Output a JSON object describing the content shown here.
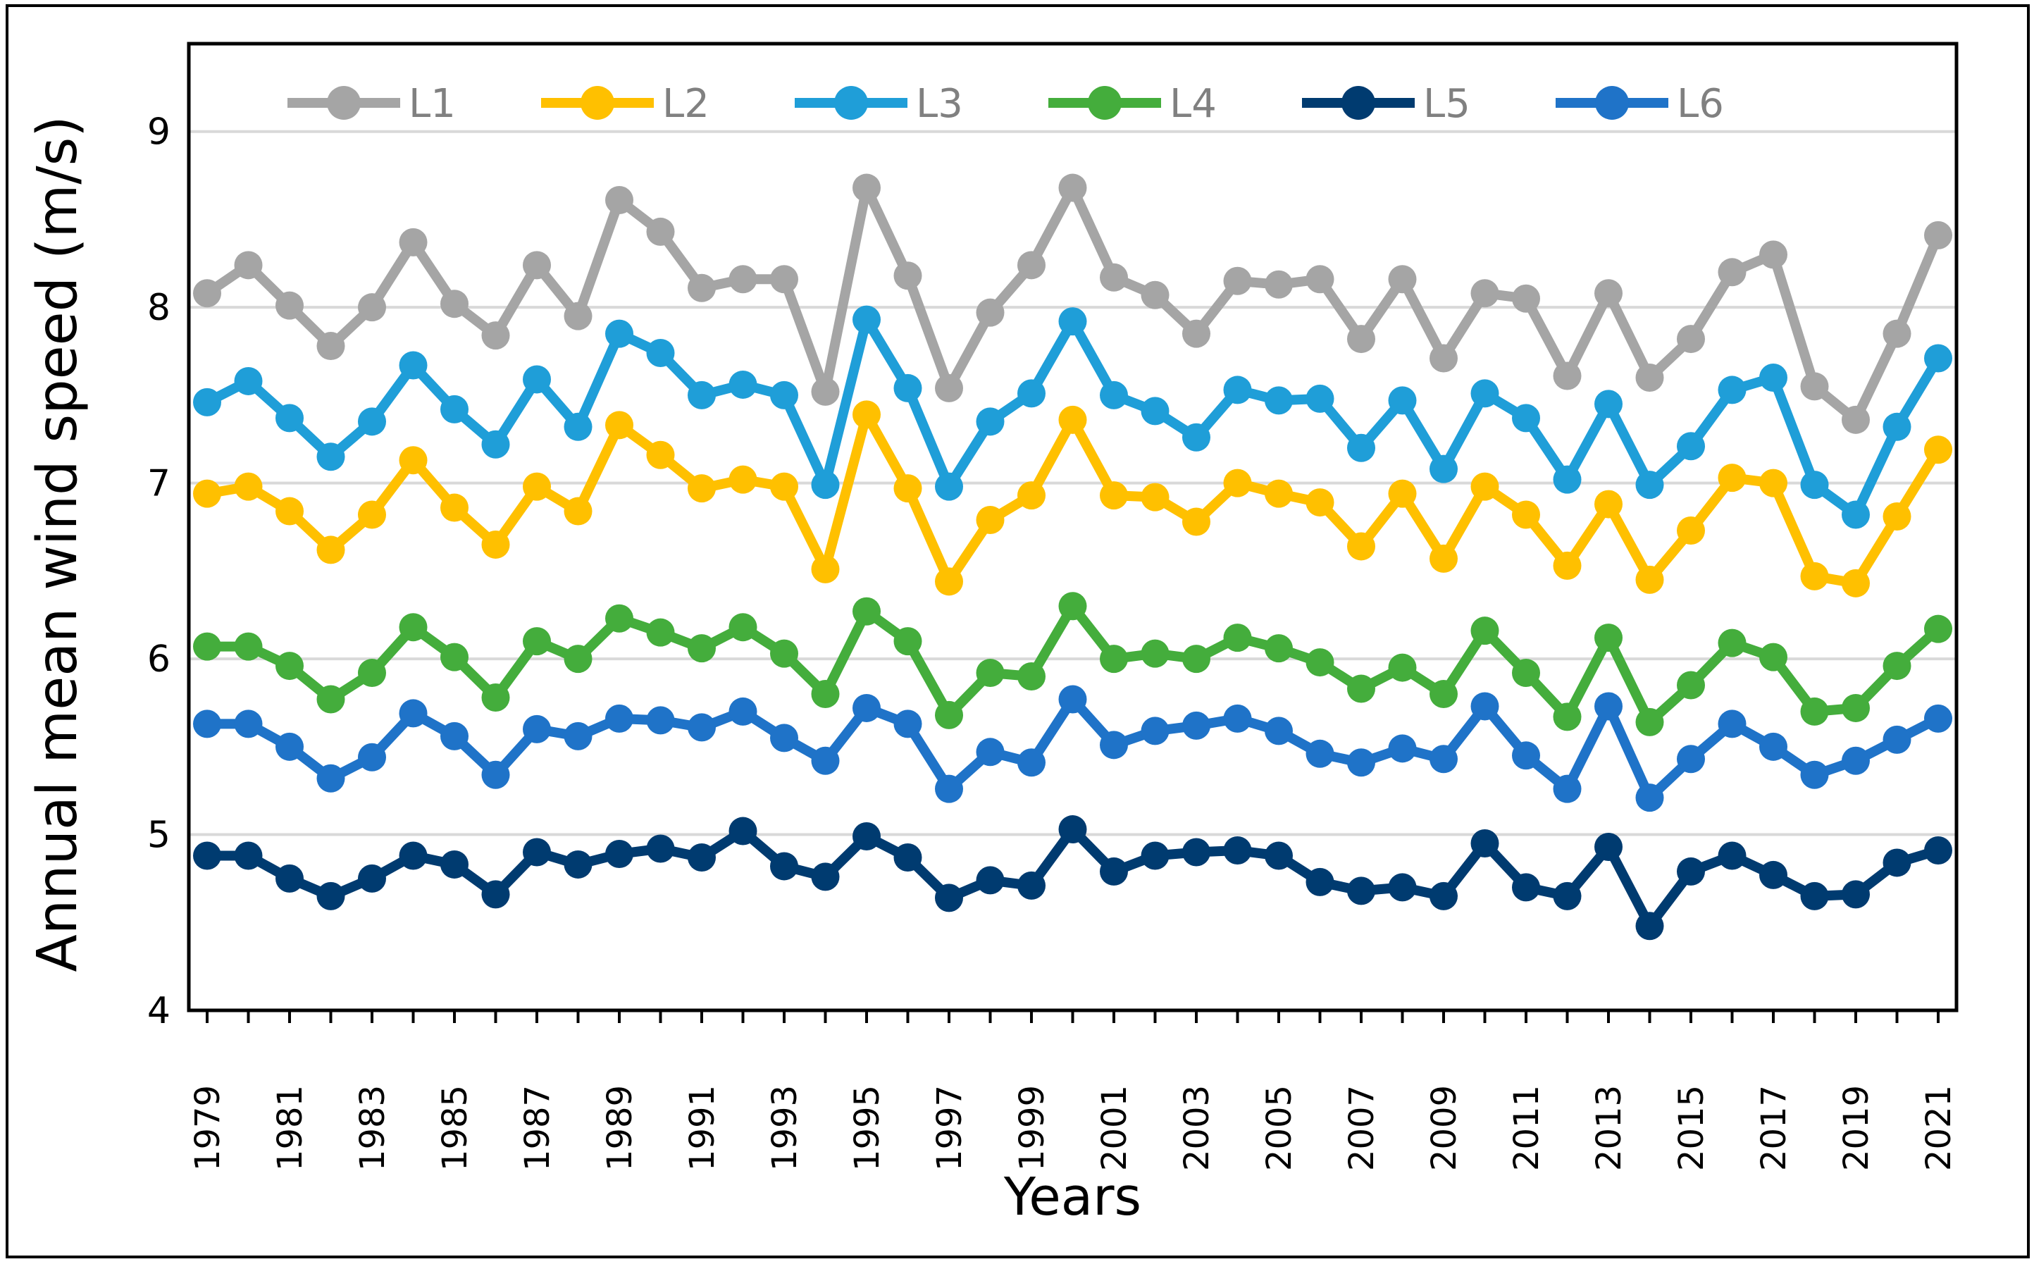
{
  "chart_data": {
    "type": "line",
    "title": "",
    "xlabel": "Years",
    "ylabel": "Annual mean wind speed (m/s)",
    "ylim": [
      4,
      9.5
    ],
    "yticks": [
      4,
      5,
      6,
      7,
      8,
      9
    ],
    "grid": "horizontal",
    "legend_placement": "top-center",
    "x": [
      1979,
      1980,
      1981,
      1982,
      1983,
      1984,
      1985,
      1986,
      1987,
      1988,
      1989,
      1990,
      1991,
      1992,
      1993,
      1994,
      1995,
      1996,
      1997,
      1998,
      1999,
      2000,
      2001,
      2002,
      2003,
      2004,
      2005,
      2006,
      2007,
      2008,
      2009,
      2010,
      2011,
      2012,
      2013,
      2014,
      2015,
      2016,
      2017,
      2018,
      2019,
      2020,
      2021
    ],
    "xtick_labels": [
      "1979",
      "1981",
      "1983",
      "1985",
      "1987",
      "1989",
      "1991",
      "1993",
      "1995",
      "1997",
      "1999",
      "2001",
      "2003",
      "2005",
      "2007",
      "2009",
      "2011",
      "2013",
      "2015",
      "2017",
      "2019",
      "2021"
    ],
    "series": [
      {
        "name": "L1",
        "color": "#A5A5A5",
        "values": [
          8.08,
          8.24,
          8.01,
          7.78,
          8.0,
          8.37,
          8.02,
          7.84,
          8.24,
          7.95,
          8.61,
          8.43,
          8.11,
          8.16,
          8.16,
          7.52,
          8.68,
          8.18,
          7.54,
          7.97,
          8.24,
          8.68,
          8.17,
          8.07,
          7.85,
          8.15,
          8.13,
          8.16,
          7.82,
          8.16,
          7.71,
          8.08,
          8.05,
          7.61,
          8.08,
          7.6,
          7.82,
          8.2,
          8.3,
          7.55,
          7.36,
          7.85,
          8.41
        ]
      },
      {
        "name": "L2",
        "color": "#FFC000",
        "values": [
          6.94,
          6.98,
          6.84,
          6.62,
          6.82,
          7.13,
          6.86,
          6.65,
          6.98,
          6.84,
          7.33,
          7.16,
          6.97,
          7.02,
          6.98,
          6.51,
          7.39,
          6.97,
          6.44,
          6.79,
          6.93,
          7.36,
          6.93,
          6.92,
          6.78,
          7.0,
          6.94,
          6.89,
          6.64,
          6.94,
          6.57,
          6.98,
          6.82,
          6.53,
          6.88,
          6.45,
          6.73,
          7.03,
          7.0,
          6.47,
          6.43,
          6.81,
          7.19
        ]
      },
      {
        "name": "L3",
        "color": "#1F9ED8",
        "values": [
          7.46,
          7.58,
          7.37,
          7.15,
          7.35,
          7.67,
          7.42,
          7.22,
          7.59,
          7.32,
          7.85,
          7.74,
          7.5,
          7.56,
          7.5,
          6.99,
          7.93,
          7.54,
          6.98,
          7.35,
          7.51,
          7.92,
          7.5,
          7.41,
          7.26,
          7.53,
          7.47,
          7.48,
          7.2,
          7.47,
          7.08,
          7.51,
          7.37,
          7.02,
          7.45,
          6.99,
          7.21,
          7.53,
          7.6,
          6.99,
          6.82,
          7.32,
          7.71
        ]
      },
      {
        "name": "L4",
        "color": "#44AD3C",
        "values": [
          6.07,
          6.07,
          5.96,
          5.77,
          5.92,
          6.18,
          6.01,
          5.78,
          6.1,
          6.0,
          6.23,
          6.15,
          6.06,
          6.18,
          6.03,
          5.8,
          6.27,
          6.1,
          5.68,
          5.92,
          5.9,
          6.3,
          6.0,
          6.03,
          6.0,
          6.12,
          6.06,
          5.98,
          5.83,
          5.95,
          5.8,
          6.16,
          5.92,
          5.67,
          6.12,
          5.64,
          5.85,
          6.09,
          6.01,
          5.7,
          5.72,
          5.96,
          6.17
        ]
      },
      {
        "name": "L5",
        "color": "#003B70",
        "values": [
          4.88,
          4.88,
          4.75,
          4.65,
          4.75,
          4.88,
          4.83,
          4.66,
          4.9,
          4.83,
          4.89,
          4.92,
          4.87,
          5.02,
          4.82,
          4.76,
          4.99,
          4.87,
          4.64,
          4.74,
          4.71,
          5.03,
          4.79,
          4.88,
          4.9,
          4.91,
          4.88,
          4.73,
          4.68,
          4.7,
          4.65,
          4.95,
          4.7,
          4.65,
          4.93,
          4.48,
          4.79,
          4.88,
          4.77,
          4.65,
          4.66,
          4.84,
          4.91
        ]
      },
      {
        "name": "L6",
        "color": "#1F73C8",
        "values": [
          5.63,
          5.63,
          5.5,
          5.32,
          5.44,
          5.69,
          5.56,
          5.34,
          5.6,
          5.56,
          5.66,
          5.65,
          5.61,
          5.7,
          5.55,
          5.42,
          5.72,
          5.63,
          5.26,
          5.47,
          5.41,
          5.77,
          5.51,
          5.59,
          5.62,
          5.66,
          5.59,
          5.46,
          5.41,
          5.49,
          5.43,
          5.73,
          5.45,
          5.26,
          5.73,
          5.21,
          5.43,
          5.63,
          5.5,
          5.34,
          5.42,
          5.54,
          5.66
        ]
      }
    ]
  }
}
